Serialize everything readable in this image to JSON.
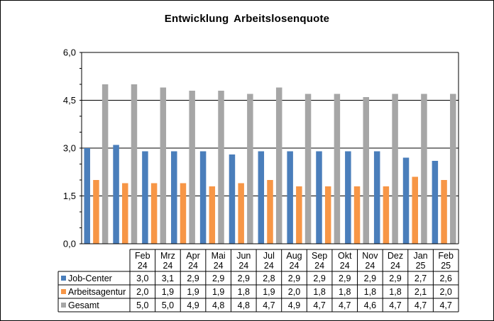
{
  "chart_data": {
    "type": "bar",
    "title": "Entwicklung  Arbeitslosenquote",
    "categories": [
      [
        "Feb",
        "24"
      ],
      [
        "Mrz",
        "24"
      ],
      [
        "Apr",
        "24"
      ],
      [
        "Mai",
        "24"
      ],
      [
        "Jun",
        "24"
      ],
      [
        "Jul",
        "24"
      ],
      [
        "Aug",
        "24"
      ],
      [
        "Sep",
        "24"
      ],
      [
        "Okt",
        "24"
      ],
      [
        "Nov",
        "24"
      ],
      [
        "Dez",
        "24"
      ],
      [
        "Jan",
        "25"
      ],
      [
        "Feb",
        "25"
      ]
    ],
    "series": [
      {
        "name": "Job-Center",
        "color": "#4a7ebb",
        "values": [
          3.0,
          3.1,
          2.9,
          2.9,
          2.9,
          2.8,
          2.9,
          2.9,
          2.9,
          2.9,
          2.9,
          2.7,
          2.6
        ],
        "labels": [
          "3,0",
          "3,1",
          "2,9",
          "2,9",
          "2,9",
          "2,8",
          "2,9",
          "2,9",
          "2,9",
          "2,9",
          "2,9",
          "2,7",
          "2,6"
        ]
      },
      {
        "name": "Arbeitsagentur",
        "color": "#f79646",
        "values": [
          2.0,
          1.9,
          1.9,
          1.9,
          1.8,
          1.9,
          2.0,
          1.8,
          1.8,
          1.8,
          1.8,
          2.1,
          2.0
        ],
        "labels": [
          "2,0",
          "1,9",
          "1,9",
          "1,9",
          "1,8",
          "1,9",
          "2,0",
          "1,8",
          "1,8",
          "1,8",
          "1,8",
          "2,1",
          "2,0"
        ]
      },
      {
        "name": "Gesamt",
        "color": "#a6a6a6",
        "values": [
          5.0,
          5.0,
          4.9,
          4.8,
          4.8,
          4.7,
          4.9,
          4.7,
          4.7,
          4.6,
          4.7,
          4.7,
          4.7
        ],
        "labels": [
          "5,0",
          "5,0",
          "4,9",
          "4,8",
          "4,8",
          "4,7",
          "4,9",
          "4,7",
          "4,7",
          "4,6",
          "4,7",
          "4,7",
          "4,7"
        ]
      }
    ],
    "ylim": [
      0,
      6
    ],
    "yticks": [
      0,
      1.5,
      3,
      4.5,
      6
    ],
    "ytick_labels": [
      "0,0",
      "1,5",
      "3,0",
      "4,5",
      "6,0"
    ],
    "grid": true,
    "legend": "data-table-left"
  }
}
